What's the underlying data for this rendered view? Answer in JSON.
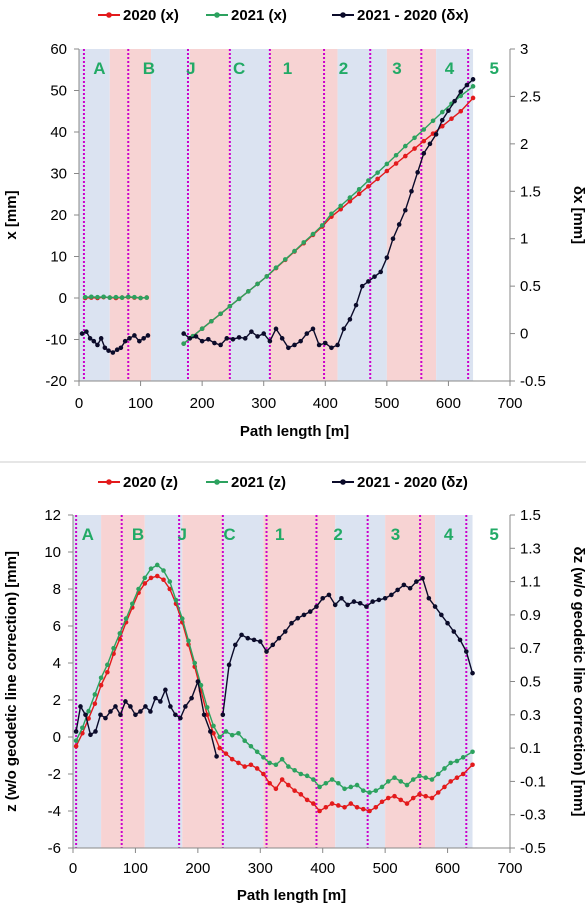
{
  "colors": {
    "s2020": "#e31a1c",
    "s2021": "#2ca25f",
    "diff": "#0b0b2a",
    "blue_band": "#dbe3f1",
    "red_band": "#f7d3d3",
    "boundary": "#cc00cc",
    "segment_label": "#22aa66"
  },
  "chart_data": [
    {
      "type": "line",
      "xlabel": "Path length [m]",
      "ylabel": "x [mm]",
      "y2label": "δx [mm]",
      "xlim": [
        0,
        700
      ],
      "ylim": [
        -20,
        60
      ],
      "y2lim": [
        -0.5,
        3
      ],
      "xticks": [
        "0",
        "100",
        "200",
        "300",
        "400",
        "500",
        "600",
        "700"
      ],
      "yticks": [
        "-20",
        "-10",
        "0",
        "10",
        "20",
        "30",
        "40",
        "50",
        "60"
      ],
      "y2ticks": [
        "-0.5",
        "0",
        "0.5",
        "1",
        "1.5",
        "2",
        "2.5",
        "3"
      ],
      "legend": [
        "2020 (x)",
        "2021 (x)",
        "2021 - 2020 (δx)"
      ],
      "legend_position": "top",
      "segment_labels": [
        {
          "text": "A",
          "x": 35
        },
        {
          "text": "B",
          "x": 120
        },
        {
          "text": "J",
          "x": 192
        },
        {
          "text": "C",
          "x": 275
        },
        {
          "text": "1",
          "x": 358
        },
        {
          "text": "2",
          "x": 454
        },
        {
          "text": "3",
          "x": 546
        },
        {
          "text": "4",
          "x": 636
        },
        {
          "text": "5",
          "x": 713
        }
      ],
      "bands": [
        {
          "from": 0,
          "to": 50,
          "color": "blue"
        },
        {
          "from": 50,
          "to": 117,
          "color": "red"
        },
        {
          "from": 117,
          "to": 180,
          "color": "blue"
        },
        {
          "from": 180,
          "to": 245,
          "color": "red"
        },
        {
          "from": 245,
          "to": 310,
          "color": "blue"
        },
        {
          "from": 310,
          "to": 420,
          "color": "red"
        },
        {
          "from": 420,
          "to": 500,
          "color": "blue"
        },
        {
          "from": 500,
          "to": 580,
          "color": "red"
        },
        {
          "from": 580,
          "to": 640,
          "color": "blue"
        }
      ],
      "boundaries": [
        8,
        80,
        177,
        245,
        310,
        398,
        473,
        556,
        632
      ],
      "series": [
        {
          "name": "2020 (x)",
          "axis": "left",
          "x": [
            10,
            20,
            30,
            40,
            50,
            60,
            70,
            80,
            90,
            100,
            110
          ],
          "values": [
            0.0,
            0.1,
            0.0,
            0.2,
            0.1,
            0.0,
            0.1,
            0.2,
            0.1,
            0.0,
            0.1
          ]
        },
        {
          "name": "2020 (x)",
          "axis": "left",
          "x": [
            170,
            185,
            200,
            215,
            230,
            245,
            260,
            275,
            290,
            305,
            320,
            335,
            350,
            365,
            380,
            395,
            410,
            425,
            440,
            455,
            470,
            485,
            500,
            515,
            530,
            545,
            560,
            575,
            590,
            605,
            620,
            640
          ],
          "values": [
            -11,
            -9.2,
            -7.4,
            -5.6,
            -3.8,
            -2.0,
            -0.2,
            1.6,
            3.4,
            5.2,
            7.2,
            9.2,
            11.2,
            13.2,
            15.2,
            17.2,
            19.6,
            21.4,
            23.3,
            25.1,
            26.9,
            28.7,
            30.6,
            32.4,
            34.2,
            36.0,
            37.8,
            39.6,
            41.4,
            43.2,
            45.0,
            48.2
          ]
        },
        {
          "name": "2021 (x)",
          "axis": "left",
          "x": [
            10,
            20,
            30,
            40,
            50,
            60,
            70,
            80,
            90,
            100,
            110
          ],
          "values": [
            0.2,
            0.3,
            0.2,
            0.3,
            0.1,
            0.2,
            0.1,
            0.3,
            0.2,
            0.0,
            0.1
          ]
        },
        {
          "name": "2021 (x)",
          "axis": "left",
          "x": [
            170,
            185,
            200,
            215,
            230,
            245,
            260,
            275,
            290,
            305,
            320,
            335,
            350,
            365,
            380,
            395,
            410,
            425,
            440,
            455,
            470,
            485,
            500,
            515,
            530,
            545,
            560,
            575,
            590,
            605,
            620,
            640
          ],
          "values": [
            -11,
            -9.2,
            -7.4,
            -5.6,
            -3.8,
            -2.0,
            -0.2,
            1.6,
            3.4,
            5.2,
            7.3,
            9.3,
            11.3,
            13.4,
            15.4,
            17.5,
            20.3,
            22.2,
            24.2,
            26.2,
            28.3,
            30.2,
            32.3,
            34.4,
            36.6,
            38.6,
            40.6,
            42.7,
            44.8,
            46.8,
            48.7,
            51.0
          ]
        },
        {
          "name": "2021 - 2020 (δx)",
          "axis": "right",
          "x": [
            5,
            12,
            18,
            24,
            30,
            36,
            42,
            48,
            55,
            62,
            68,
            75,
            82,
            90,
            98,
            105,
            112
          ],
          "values": [
            0.0,
            0.02,
            -0.05,
            -0.08,
            -0.12,
            -0.05,
            -0.15,
            -0.18,
            -0.2,
            -0.17,
            -0.15,
            -0.08,
            -0.05,
            -0.02,
            -0.08,
            -0.05,
            -0.02
          ]
        },
        {
          "name": "2021 - 2020 (δx)",
          "axis": "right",
          "x": [
            170,
            180,
            190,
            200,
            210,
            220,
            230,
            240,
            250,
            260,
            270,
            280,
            290,
            300,
            310,
            320,
            330,
            340,
            350,
            360,
            370,
            380,
            390,
            400,
            410,
            420,
            430,
            440,
            450,
            460,
            470,
            480,
            490,
            500,
            510,
            520,
            530,
            540,
            550,
            560,
            570,
            580,
            590,
            600,
            610,
            620,
            630,
            640
          ],
          "values": [
            0.0,
            -0.05,
            -0.03,
            -0.08,
            -0.06,
            -0.1,
            -0.12,
            -0.05,
            -0.06,
            -0.04,
            -0.05,
            0.02,
            -0.03,
            0.0,
            -0.08,
            0.05,
            -0.05,
            -0.15,
            -0.12,
            -0.08,
            0.0,
            0.05,
            -0.12,
            -0.1,
            -0.15,
            -0.12,
            0.05,
            0.15,
            0.3,
            0.5,
            0.55,
            0.6,
            0.65,
            0.8,
            1.0,
            1.15,
            1.3,
            1.5,
            1.7,
            1.9,
            2.0,
            2.1,
            2.25,
            2.35,
            2.45,
            2.55,
            2.62,
            2.68
          ]
        }
      ]
    },
    {
      "type": "line",
      "xlabel": "Path length [m]",
      "ylabel": "z (w/o geodetic line correction) [mm]",
      "y2label": "δz (w/o geodetic line correction) [mm]",
      "xlim": [
        0,
        700
      ],
      "ylim": [
        -6,
        12
      ],
      "y2lim": [
        -0.5,
        1.5
      ],
      "xticks": [
        "0",
        "100",
        "200",
        "300",
        "400",
        "500",
        "600",
        "700"
      ],
      "yticks": [
        "-6",
        "-4",
        "-2",
        "0",
        "2",
        "4",
        "6",
        "8",
        "10",
        "12"
      ],
      "y2ticks": [
        "-0.5",
        "-0.3",
        "-0.1",
        "0.1",
        "0.3",
        "0.5",
        "0.7",
        "0.9",
        "1.1",
        "1.3",
        "1.5"
      ],
      "legend": [
        "2020 (z)",
        "2021 (z)",
        "2021 - 2020 (δz)"
      ],
      "legend_position": "top",
      "segment_labels": [
        {
          "text": "A",
          "x": 25
        },
        {
          "text": "B",
          "x": 110
        },
        {
          "text": "J",
          "x": 185
        },
        {
          "text": "C",
          "x": 265
        },
        {
          "text": "1",
          "x": 350
        },
        {
          "text": "2",
          "x": 449
        },
        {
          "text": "3",
          "x": 546
        },
        {
          "text": "4",
          "x": 636
        },
        {
          "text": "5",
          "x": 713
        }
      ],
      "bands": [
        {
          "from": 0,
          "to": 45,
          "color": "blue"
        },
        {
          "from": 45,
          "to": 115,
          "color": "red"
        },
        {
          "from": 115,
          "to": 175,
          "color": "blue"
        },
        {
          "from": 175,
          "to": 240,
          "color": "red"
        },
        {
          "from": 240,
          "to": 305,
          "color": "blue"
        },
        {
          "from": 305,
          "to": 420,
          "color": "red"
        },
        {
          "from": 420,
          "to": 500,
          "color": "blue"
        },
        {
          "from": 500,
          "to": 580,
          "color": "red"
        },
        {
          "from": 580,
          "to": 640,
          "color": "blue"
        }
      ],
      "boundaries": [
        5,
        78,
        170,
        240,
        310,
        390,
        472,
        556,
        630
      ],
      "series": [
        {
          "name": "2020 (z)",
          "axis": "left",
          "x": [
            5,
            15,
            25,
            35,
            45,
            55,
            65,
            75,
            85,
            95,
            105,
            115,
            125,
            135,
            145,
            155,
            165,
            175,
            185,
            195,
            205,
            215,
            225,
            235,
            245,
            255,
            265,
            275,
            285,
            295,
            305,
            315,
            325,
            335,
            345,
            355,
            365,
            375,
            385,
            395,
            405,
            415,
            425,
            435,
            445,
            455,
            465,
            475,
            485,
            495,
            505,
            515,
            525,
            535,
            545,
            555,
            565,
            575,
            585,
            595,
            605,
            615,
            625,
            640
          ],
          "values": [
            -0.5,
            0.2,
            1.0,
            1.8,
            2.8,
            3.5,
            4.5,
            5.3,
            6.2,
            7.0,
            7.8,
            8.3,
            8.6,
            8.7,
            8.5,
            8.0,
            7.2,
            6.2,
            5.0,
            3.8,
            2.5,
            1.2,
            0.2,
            -0.6,
            -0.9,
            -1.2,
            -1.4,
            -1.6,
            -1.5,
            -1.7,
            -2.0,
            -2.5,
            -2.8,
            -2.3,
            -2.6,
            -2.9,
            -3.1,
            -3.4,
            -3.6,
            -4.0,
            -3.8,
            -3.6,
            -3.7,
            -3.8,
            -3.6,
            -3.8,
            -3.9,
            -4.0,
            -3.8,
            -3.5,
            -3.3,
            -3.2,
            -3.4,
            -3.6,
            -3.3,
            -3.1,
            -3.2,
            -3.3,
            -3.0,
            -2.7,
            -2.4,
            -2.2,
            -2.0,
            -1.5
          ]
        },
        {
          "name": "2021 (z)",
          "axis": "left",
          "x": [
            5,
            15,
            25,
            35,
            45,
            55,
            65,
            75,
            85,
            95,
            105,
            115,
            125,
            135,
            145,
            155,
            165,
            175,
            185,
            195,
            205,
            215,
            225,
            235,
            245,
            255,
            265,
            275,
            285,
            295,
            305,
            315,
            325,
            335,
            345,
            355,
            365,
            375,
            385,
            395,
            405,
            415,
            425,
            435,
            445,
            455,
            465,
            475,
            485,
            495,
            505,
            515,
            525,
            535,
            545,
            555,
            565,
            575,
            585,
            595,
            605,
            615,
            625,
            640
          ],
          "values": [
            -0.2,
            0.5,
            1.4,
            2.3,
            3.2,
            3.9,
            4.8,
            5.6,
            6.4,
            7.2,
            8.0,
            8.6,
            9.1,
            9.3,
            9.0,
            8.4,
            7.4,
            6.4,
            5.2,
            4.0,
            2.8,
            1.6,
            0.6,
            0.0,
            0.3,
            0.1,
            0.2,
            -0.2,
            -0.5,
            -0.8,
            -1.1,
            -1.4,
            -1.5,
            -1.2,
            -1.6,
            -1.8,
            -2.0,
            -2.1,
            -2.3,
            -2.7,
            -2.5,
            -2.3,
            -2.5,
            -2.8,
            -2.7,
            -2.6,
            -2.9,
            -3.0,
            -2.9,
            -2.7,
            -2.4,
            -2.2,
            -2.4,
            -2.6,
            -2.3,
            -2.1,
            -2.2,
            -2.3,
            -2.0,
            -1.7,
            -1.4,
            -1.3,
            -1.1,
            -0.8
          ]
        },
        {
          "name": "2021 - 2020 (δz)",
          "axis": "right",
          "x": [
            5,
            12,
            20,
            28,
            36,
            44,
            52,
            60,
            68,
            76,
            84,
            92,
            100,
            108,
            116,
            124,
            132,
            140,
            148,
            156,
            164,
            172,
            180,
            190,
            200,
            210,
            220,
            230
          ],
          "values": [
            0.2,
            0.35,
            0.3,
            0.18,
            0.2,
            0.3,
            0.28,
            0.32,
            0.35,
            0.3,
            0.38,
            0.35,
            0.3,
            0.32,
            0.35,
            0.32,
            0.4,
            0.38,
            0.45,
            0.35,
            0.3,
            0.28,
            0.35,
            0.4,
            0.5,
            0.3,
            0.2,
            0.05
          ]
        },
        {
          "name": "2021 - 2020 (δz)",
          "axis": "right",
          "x": [
            240,
            250,
            260,
            270,
            280,
            290,
            300,
            310,
            320,
            330,
            340,
            350,
            360,
            370,
            380,
            390,
            400,
            410,
            420,
            430,
            440,
            450,
            460,
            470,
            480,
            490,
            500,
            510,
            520,
            530,
            540,
            550,
            560,
            570,
            580,
            590,
            600,
            610,
            620,
            630,
            640
          ],
          "values": [
            0.3,
            0.6,
            0.72,
            0.78,
            0.76,
            0.75,
            0.74,
            0.68,
            0.72,
            0.76,
            0.8,
            0.85,
            0.88,
            0.9,
            0.92,
            0.95,
            1.0,
            1.02,
            0.96,
            1.0,
            0.96,
            0.98,
            0.97,
            0.95,
            0.98,
            0.99,
            1.0,
            1.02,
            1.05,
            1.08,
            1.06,
            1.1,
            1.12,
            1.0,
            0.95,
            0.9,
            0.85,
            0.8,
            0.75,
            0.68,
            0.55
          ]
        }
      ]
    }
  ]
}
